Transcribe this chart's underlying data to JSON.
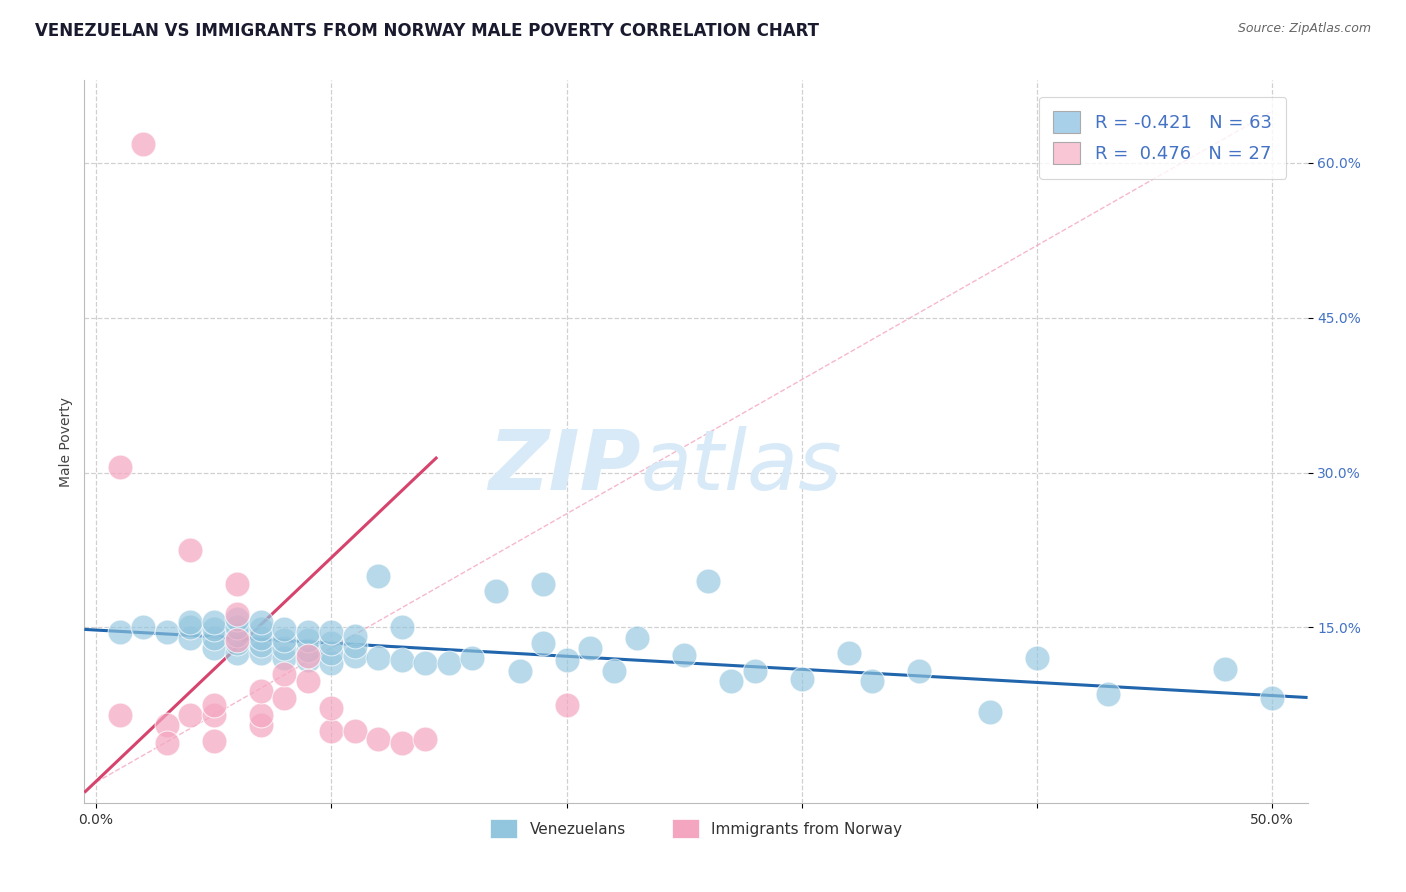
{
  "title": "VENEZUELAN VS IMMIGRANTS FROM NORWAY MALE POVERTY CORRELATION CHART",
  "source": "Source: ZipAtlas.com",
  "ylabel": "Male Poverty",
  "xlim": [
    -0.005,
    0.515
  ],
  "ylim": [
    -0.02,
    0.68
  ],
  "xticks": [
    0.0,
    0.1,
    0.2,
    0.3,
    0.4,
    0.5
  ],
  "xtick_labels": [
    "0.0%",
    "",
    "",
    "",
    "",
    "50.0%"
  ],
  "yticks": [
    0.15,
    0.3,
    0.45,
    0.6
  ],
  "ytick_labels": [
    "15.0%",
    "30.0%",
    "45.0%",
    "60.0%"
  ],
  "blue_color": "#92c5de",
  "pink_color": "#f4a6c0",
  "blue_scatter_x": [
    0.01,
    0.02,
    0.03,
    0.04,
    0.04,
    0.04,
    0.05,
    0.05,
    0.05,
    0.05,
    0.06,
    0.06,
    0.06,
    0.06,
    0.06,
    0.07,
    0.07,
    0.07,
    0.07,
    0.07,
    0.08,
    0.08,
    0.08,
    0.08,
    0.09,
    0.09,
    0.09,
    0.09,
    0.1,
    0.1,
    0.1,
    0.1,
    0.11,
    0.11,
    0.11,
    0.12,
    0.12,
    0.13,
    0.13,
    0.14,
    0.15,
    0.16,
    0.17,
    0.18,
    0.19,
    0.19,
    0.2,
    0.21,
    0.22,
    0.23,
    0.25,
    0.26,
    0.27,
    0.28,
    0.3,
    0.32,
    0.33,
    0.35,
    0.38,
    0.4,
    0.43,
    0.48,
    0.5
  ],
  "blue_scatter_y": [
    0.145,
    0.15,
    0.145,
    0.14,
    0.15,
    0.155,
    0.13,
    0.14,
    0.148,
    0.155,
    0.125,
    0.135,
    0.143,
    0.15,
    0.158,
    0.125,
    0.133,
    0.14,
    0.148,
    0.155,
    0.12,
    0.13,
    0.138,
    0.148,
    0.118,
    0.128,
    0.138,
    0.145,
    0.115,
    0.125,
    0.135,
    0.145,
    0.122,
    0.132,
    0.142,
    0.12,
    0.2,
    0.118,
    0.15,
    0.115,
    0.115,
    0.12,
    0.185,
    0.108,
    0.135,
    0.192,
    0.118,
    0.13,
    0.108,
    0.14,
    0.123,
    0.195,
    0.098,
    0.108,
    0.1,
    0.125,
    0.098,
    0.108,
    0.068,
    0.12,
    0.085,
    0.11,
    0.082
  ],
  "pink_scatter_x": [
    0.01,
    0.01,
    0.02,
    0.03,
    0.03,
    0.04,
    0.04,
    0.05,
    0.05,
    0.05,
    0.06,
    0.06,
    0.06,
    0.07,
    0.07,
    0.07,
    0.08,
    0.08,
    0.09,
    0.09,
    0.1,
    0.1,
    0.11,
    0.12,
    0.13,
    0.14,
    0.2
  ],
  "pink_scatter_y": [
    0.305,
    0.065,
    0.618,
    0.055,
    0.038,
    0.065,
    0.225,
    0.065,
    0.04,
    0.075,
    0.138,
    0.163,
    0.192,
    0.055,
    0.065,
    0.088,
    0.082,
    0.105,
    0.098,
    0.122,
    0.05,
    0.072,
    0.05,
    0.042,
    0.038,
    0.042,
    0.075
  ],
  "blue_line_x": [
    -0.005,
    0.515
  ],
  "blue_line_y": [
    0.148,
    0.082
  ],
  "pink_line_x": [
    -0.005,
    0.145
  ],
  "pink_line_y": [
    -0.01,
    0.315
  ],
  "ref_line_x": [
    0.0,
    0.5
  ],
  "ref_line_y": [
    0.0,
    0.65
  ],
  "blue_trend_color": "#2166ac",
  "pink_trend_color": "#d6446e",
  "ref_line_color": "#f4a6c0",
  "watermark_zip": "ZIP",
  "watermark_atlas": "atlas",
  "watermark_color": "#d8eaf8",
  "grid_color": "#d0d0d0",
  "title_fontsize": 12,
  "label_fontsize": 10,
  "tick_fontsize": 10,
  "blue_R": -0.421,
  "pink_R": 0.476,
  "blue_N": 63,
  "pink_N": 27,
  "bottom_legend_blue": "Venezuelans",
  "bottom_legend_pink": "Immigrants from Norway",
  "legend_blue_sq": "#a8d0e8",
  "legend_pink_sq": "#f9c6d5",
  "r_n_color": "#4472c4",
  "background_color": "#ffffff"
}
